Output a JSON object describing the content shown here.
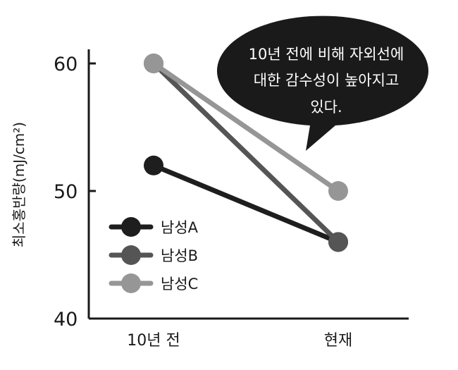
{
  "chart_data": {
    "type": "line",
    "title": "",
    "xlabel": "",
    "ylabel": "최소홍반량(mJ/cm²)",
    "categories": [
      "10년 전",
      "현재"
    ],
    "ylim": [
      40,
      60
    ],
    "yticks": [
      "40",
      "50",
      "60"
    ],
    "grid": false,
    "legend_position": "bottom-left",
    "series": [
      {
        "name": "남성A",
        "values": [
          52,
          46
        ],
        "color": "#1e1e1e"
      },
      {
        "name": "남성B",
        "values": [
          60,
          46
        ],
        "color": "#555555"
      },
      {
        "name": "남성C",
        "values": [
          60,
          50
        ],
        "color": "#969696"
      }
    ],
    "annotation": {
      "lines": [
        "10년 전에 비해 자외선에",
        "대한 감수성이 높아지고",
        "있다."
      ]
    }
  }
}
